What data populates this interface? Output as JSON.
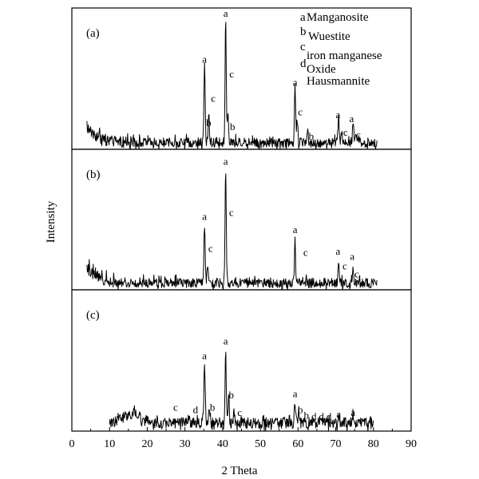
{
  "chart_data": {
    "type": "line",
    "title": "",
    "xlabel": "2 Theta",
    "ylabel": "Intensity",
    "xlim": [
      0,
      90
    ],
    "x_ticks": [
      0,
      10,
      20,
      30,
      40,
      50,
      60,
      70,
      80,
      90
    ],
    "grid": false,
    "legend": {
      "placement": "top-right",
      "entries": [
        {
          "symbol": "a",
          "name": "Manganosite"
        },
        {
          "symbol": "b",
          "name": "Wuestite"
        },
        {
          "symbol": "c",
          "name": "iron manganese Oxide"
        },
        {
          "symbol": "d",
          "name": "Hausmannite"
        }
      ]
    },
    "panels": [
      {
        "label": "(a)",
        "x_range": [
          4,
          81
        ],
        "baseline": 0.05,
        "noise": 0.035,
        "low_angle": {
          "amp": 0.12,
          "decay": 3
        },
        "peaks": [
          {
            "x": 35.2,
            "h": 0.58
          },
          {
            "x": 36.3,
            "h": 0.18
          },
          {
            "x": 40.8,
            "h": 0.92
          },
          {
            "x": 41.4,
            "h": 0.2
          },
          {
            "x": 59.2,
            "h": 0.42
          },
          {
            "x": 59.8,
            "h": 0.2
          },
          {
            "x": 62.5,
            "h": 0.06
          },
          {
            "x": 70.8,
            "h": 0.2
          },
          {
            "x": 71.6,
            "h": 0.08
          },
          {
            "x": 74.6,
            "h": 0.16
          },
          {
            "x": 75.4,
            "h": 0.06
          }
        ],
        "peak_labels": [
          {
            "x": 35.2,
            "y": 0.63,
            "text": "a"
          },
          {
            "x": 37.5,
            "y": 0.34,
            "text": "c"
          },
          {
            "x": 36.3,
            "y": 0.16,
            "text": "b"
          },
          {
            "x": 40.8,
            "y": 0.97,
            "text": "a"
          },
          {
            "x": 42.4,
            "y": 0.52,
            "text": "c"
          },
          {
            "x": 42.6,
            "y": 0.13,
            "text": "b"
          },
          {
            "x": 59.2,
            "y": 0.46,
            "text": "a"
          },
          {
            "x": 60.6,
            "y": 0.24,
            "text": "c"
          },
          {
            "x": 63.5,
            "y": 0.06,
            "text": "b"
          },
          {
            "x": 70.6,
            "y": 0.22,
            "text": "a"
          },
          {
            "x": 72.6,
            "y": 0.09,
            "text": "c"
          },
          {
            "x": 74.2,
            "y": 0.19,
            "text": "a"
          },
          {
            "x": 76.0,
            "y": 0.07,
            "text": "c"
          }
        ]
      },
      {
        "label": "(b)",
        "x_range": [
          4,
          81
        ],
        "baseline": 0.05,
        "noise": 0.035,
        "low_angle": {
          "amp": 0.14,
          "decay": 3
        },
        "peaks": [
          {
            "x": 35.2,
            "h": 0.42
          },
          {
            "x": 36.0,
            "h": 0.12
          },
          {
            "x": 40.8,
            "h": 0.83
          },
          {
            "x": 59.2,
            "h": 0.32
          },
          {
            "x": 70.8,
            "h": 0.16
          },
          {
            "x": 74.6,
            "h": 0.12
          }
        ],
        "peak_labels": [
          {
            "x": 35.2,
            "y": 0.51,
            "text": "a"
          },
          {
            "x": 36.8,
            "y": 0.27,
            "text": "c"
          },
          {
            "x": 40.8,
            "y": 0.92,
            "text": "a"
          },
          {
            "x": 42.3,
            "y": 0.54,
            "text": "c"
          },
          {
            "x": 59.2,
            "y": 0.41,
            "text": "a"
          },
          {
            "x": 62.0,
            "y": 0.24,
            "text": "c"
          },
          {
            "x": 70.6,
            "y": 0.25,
            "text": "a"
          },
          {
            "x": 72.4,
            "y": 0.14,
            "text": "c"
          },
          {
            "x": 74.4,
            "y": 0.21,
            "text": "a"
          },
          {
            "x": 75.6,
            "y": 0.08,
            "text": "c"
          }
        ]
      },
      {
        "label": "(c)",
        "x_range": [
          10,
          80
        ],
        "baseline": 0.06,
        "noise": 0.04,
        "low_angle": {
          "amp": 0.0,
          "decay": 3
        },
        "humps": [
          {
            "x": 16,
            "w": 3.5,
            "h": 0.07
          }
        ],
        "peaks": [
          {
            "x": 35.2,
            "h": 0.46
          },
          {
            "x": 36.4,
            "h": 0.1
          },
          {
            "x": 40.8,
            "h": 0.52
          },
          {
            "x": 41.6,
            "h": 0.2
          },
          {
            "x": 43.0,
            "h": 0.07
          },
          {
            "x": 59.2,
            "h": 0.16
          },
          {
            "x": 60.2,
            "h": 0.1
          },
          {
            "x": 70.8,
            "h": 0.07
          },
          {
            "x": 74.6,
            "h": 0.06
          }
        ],
        "peak_labels": [
          {
            "x": 27.5,
            "y": 0.14,
            "text": "c"
          },
          {
            "x": 32.8,
            "y": 0.12,
            "text": "d"
          },
          {
            "x": 35.2,
            "y": 0.52,
            "text": "a"
          },
          {
            "x": 37.3,
            "y": 0.14,
            "text": "b"
          },
          {
            "x": 40.8,
            "y": 0.63,
            "text": "a"
          },
          {
            "x": 42.3,
            "y": 0.23,
            "text": "b"
          },
          {
            "x": 44.5,
            "y": 0.1,
            "text": "c"
          },
          {
            "x": 59.2,
            "y": 0.24,
            "text": "a"
          },
          {
            "x": 60.6,
            "y": 0.12,
            "text": "b"
          },
          {
            "x": 62.2,
            "y": 0.08,
            "text": "b"
          },
          {
            "x": 64.2,
            "y": 0.07,
            "text": "d"
          },
          {
            "x": 66.2,
            "y": 0.07,
            "text": "d"
          },
          {
            "x": 68.2,
            "y": 0.07,
            "text": "d"
          },
          {
            "x": 70.8,
            "y": 0.09,
            "text": "a"
          },
          {
            "x": 74.6,
            "y": 0.1,
            "text": "a"
          }
        ]
      }
    ]
  }
}
